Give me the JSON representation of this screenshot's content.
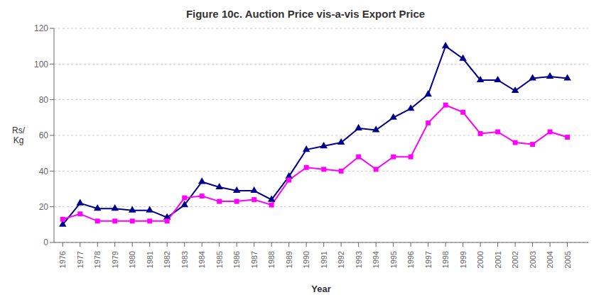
{
  "chart_data": {
    "type": "line",
    "title": "Figure 10c. Auction Price vis-a-vis Export Price",
    "x_label": "Year",
    "y_label": "Rs/\nKg",
    "x": [
      1976,
      1977,
      1978,
      1979,
      1980,
      1981,
      1982,
      1983,
      1984,
      1985,
      1986,
      1987,
      1988,
      1989,
      1990,
      1991,
      1992,
      1993,
      1994,
      1995,
      1996,
      1997,
      1998,
      1999,
      2000,
      2001,
      2002,
      2003,
      2004,
      2005
    ],
    "series": [
      {
        "color": "#00008B",
        "marker": "triangle",
        "values": [
          10,
          22,
          19,
          19,
          18,
          18,
          14,
          21,
          34,
          31,
          29,
          29,
          24,
          37,
          52,
          54,
          56,
          64,
          63,
          70,
          75,
          83,
          110,
          103,
          91,
          91,
          85,
          92,
          93,
          92
        ]
      },
      {
        "color": "#FF00FF",
        "marker": "square",
        "values": [
          13,
          16,
          12,
          12,
          12,
          12,
          12,
          25,
          26,
          23,
          23,
          24,
          21,
          35,
          42,
          41,
          40,
          48,
          41,
          48,
          48,
          67,
          77,
          73,
          61,
          62,
          56,
          55,
          62,
          59
        ]
      }
    ],
    "xlim": [
      1975.5,
      2006.2
    ],
    "xticks": [
      1976,
      1977,
      1978,
      1979,
      1980,
      1981,
      1982,
      1983,
      1984,
      1985,
      1986,
      1987,
      1988,
      1989,
      1990,
      1991,
      1992,
      1993,
      1994,
      1995,
      1996,
      1997,
      1998,
      1999,
      2000,
      2001,
      2002,
      2003,
      2004,
      2005
    ],
    "ylim": [
      0,
      120
    ],
    "yticks": [
      0,
      20,
      40,
      60,
      80,
      100,
      120
    ],
    "grid": true
  }
}
